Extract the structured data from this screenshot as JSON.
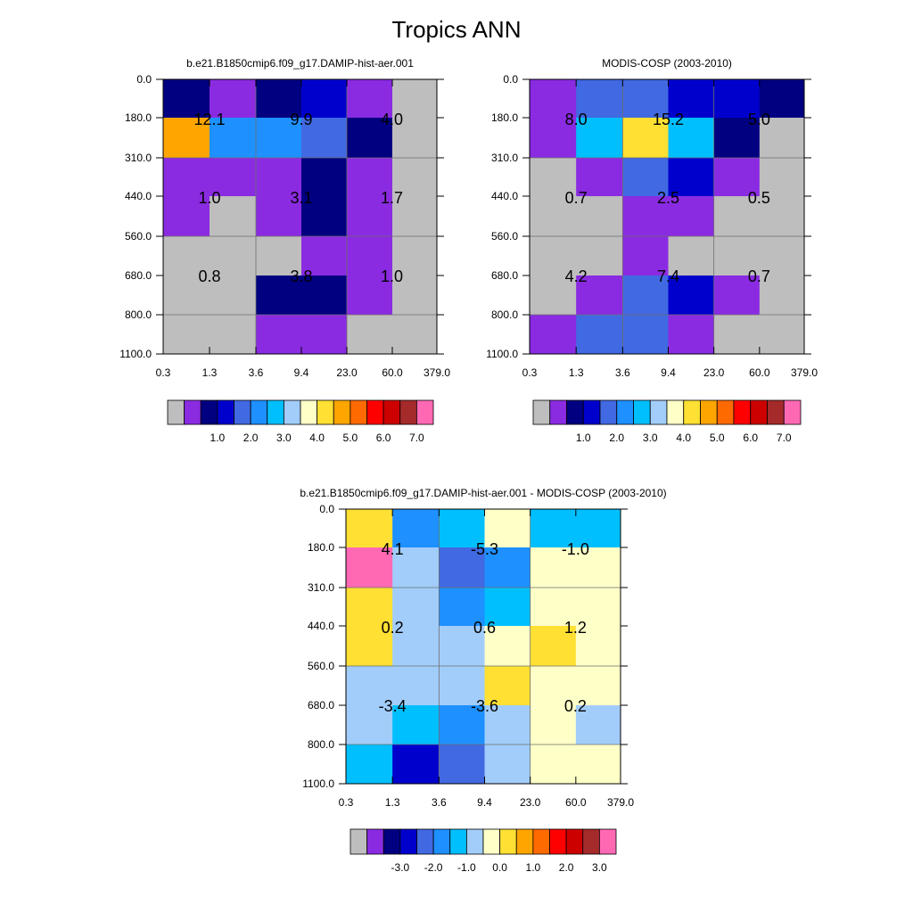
{
  "title": "Tropics ANN",
  "chart_data": [
    {
      "type": "heatmap",
      "title": "b.e21.B1850cmip6.f09_g17.DAMIP-hist-aer.001",
      "x_ticks": [
        "0.3",
        "1.3",
        "3.6",
        "9.4",
        "23.0",
        "60.0",
        "379.0"
      ],
      "y_ticks": [
        "0.0",
        "180.0",
        "310.0",
        "440.0",
        "560.0",
        "680.0",
        "800.0",
        "1100.0"
      ],
      "cell_colors": [
        [
          "#000080",
          "#8A2BE2",
          "#000080",
          "#0000CD",
          "#8A2BE2",
          "#BEBEBE"
        ],
        [
          "#FFA500",
          "#1E90FF",
          "#1E90FF",
          "#4169E1",
          "#000080",
          "#BEBEBE"
        ],
        [
          "#8A2BE2",
          "#8A2BE2",
          "#8A2BE2",
          "#000080",
          "#8A2BE2",
          "#BEBEBE"
        ],
        [
          "#8A2BE2",
          "#BEBEBE",
          "#8A2BE2",
          "#000080",
          "#8A2BE2",
          "#BEBEBE"
        ],
        [
          "#BEBEBE",
          "#BEBEBE",
          "#BEBEBE",
          "#8A2BE2",
          "#8A2BE2",
          "#BEBEBE"
        ],
        [
          "#BEBEBE",
          "#BEBEBE",
          "#000080",
          "#000080",
          "#8A2BE2",
          "#BEBEBE"
        ],
        [
          "#BEBEBE",
          "#BEBEBE",
          "#8A2BE2",
          "#8A2BE2",
          "#BEBEBE",
          "#BEBEBE"
        ]
      ],
      "box_labels": [
        {
          "col": 0,
          "row": 0,
          "value": "12.1"
        },
        {
          "col": 1,
          "row": 0,
          "value": "9.9"
        },
        {
          "col": 2,
          "row": 0,
          "value": "4.0"
        },
        {
          "col": 0,
          "row": 1,
          "value": "1.0"
        },
        {
          "col": 1,
          "row": 1,
          "value": "3.1"
        },
        {
          "col": 2,
          "row": 1,
          "value": "1.7"
        },
        {
          "col": 0,
          "row": 2,
          "value": "0.8"
        },
        {
          "col": 1,
          "row": 2,
          "value": "3.8"
        },
        {
          "col": 2,
          "row": 2,
          "value": "1.0"
        }
      ],
      "colorbar": {
        "colors": [
          "#BEBEBE",
          "#8A2BE2",
          "#000080",
          "#0000CD",
          "#4169E1",
          "#1E90FF",
          "#00BFFF",
          "#A2CDFA",
          "#FFFFC8",
          "#FFE033",
          "#FFA500",
          "#FF6A00",
          "#FF0000",
          "#CD0000",
          "#A52A2A",
          "#FF69B4"
        ],
        "labels": [
          "1.0",
          "2.0",
          "3.0",
          "4.0",
          "5.0",
          "6.0",
          "7.0"
        ]
      }
    },
    {
      "type": "heatmap",
      "title": "MODIS-COSP (2003-2010)",
      "x_ticks": [
        "0.3",
        "1.3",
        "3.6",
        "9.4",
        "23.0",
        "60.0",
        "379.0"
      ],
      "y_ticks": [
        "0.0",
        "180.0",
        "310.0",
        "440.0",
        "560.0",
        "680.0",
        "800.0",
        "1100.0"
      ],
      "cell_colors": [
        [
          "#8A2BE2",
          "#4169E1",
          "#4169E1",
          "#0000CD",
          "#0000CD",
          "#000080"
        ],
        [
          "#8A2BE2",
          "#00BFFF",
          "#FFE033",
          "#00BFFF",
          "#000080",
          "#BEBEBE"
        ],
        [
          "#BEBEBE",
          "#8A2BE2",
          "#4169E1",
          "#0000CD",
          "#8A2BE2",
          "#BEBEBE"
        ],
        [
          "#BEBEBE",
          "#BEBEBE",
          "#8A2BE2",
          "#8A2BE2",
          "#BEBEBE",
          "#BEBEBE"
        ],
        [
          "#BEBEBE",
          "#BEBEBE",
          "#8A2BE2",
          "#BEBEBE",
          "#BEBEBE",
          "#BEBEBE"
        ],
        [
          "#BEBEBE",
          "#8A2BE2",
          "#4169E1",
          "#0000CD",
          "#8A2BE2",
          "#BEBEBE"
        ],
        [
          "#8A2BE2",
          "#4169E1",
          "#4169E1",
          "#8A2BE2",
          "#BEBEBE",
          "#BEBEBE"
        ]
      ],
      "box_labels": [
        {
          "col": 0,
          "row": 0,
          "value": "8.0"
        },
        {
          "col": 1,
          "row": 0,
          "value": "15.2"
        },
        {
          "col": 2,
          "row": 0,
          "value": "5.0"
        },
        {
          "col": 0,
          "row": 1,
          "value": "0.7"
        },
        {
          "col": 1,
          "row": 1,
          "value": "2.5"
        },
        {
          "col": 2,
          "row": 1,
          "value": "0.5"
        },
        {
          "col": 0,
          "row": 2,
          "value": "4.2"
        },
        {
          "col": 1,
          "row": 2,
          "value": "7.4"
        },
        {
          "col": 2,
          "row": 2,
          "value": "0.7"
        }
      ],
      "colorbar": {
        "colors": [
          "#BEBEBE",
          "#8A2BE2",
          "#000080",
          "#0000CD",
          "#4169E1",
          "#1E90FF",
          "#00BFFF",
          "#A2CDFA",
          "#FFFFC8",
          "#FFE033",
          "#FFA500",
          "#FF6A00",
          "#FF0000",
          "#CD0000",
          "#A52A2A",
          "#FF69B4"
        ],
        "labels": [
          "1.0",
          "2.0",
          "3.0",
          "4.0",
          "5.0",
          "6.0",
          "7.0"
        ]
      }
    },
    {
      "type": "heatmap",
      "title": "b.e21.B1850cmip6.f09_g17.DAMIP-hist-aer.001 - MODIS-COSP (2003-2010)",
      "x_ticks": [
        "0.3",
        "1.3",
        "3.6",
        "9.4",
        "23.0",
        "60.0",
        "379.0"
      ],
      "y_ticks": [
        "0.0",
        "180.0",
        "310.0",
        "440.0",
        "560.0",
        "680.0",
        "800.0",
        "1100.0"
      ],
      "cell_colors": [
        [
          "#FFE033",
          "#1E90FF",
          "#00BFFF",
          "#FFFFC8",
          "#00BFFF",
          "#00BFFF"
        ],
        [
          "#FF69B4",
          "#A2CDFA",
          "#4169E1",
          "#1E90FF",
          "#FFFFC8",
          "#FFFFC8"
        ],
        [
          "#FFE033",
          "#A2CDFA",
          "#1E90FF",
          "#00BFFF",
          "#FFFFC8",
          "#FFFFC8"
        ],
        [
          "#FFE033",
          "#A2CDFA",
          "#A2CDFA",
          "#FFFFC8",
          "#FFE033",
          "#FFFFC8"
        ],
        [
          "#A2CDFA",
          "#A2CDFA",
          "#A2CDFA",
          "#FFE033",
          "#FFFFC8",
          "#FFFFC8"
        ],
        [
          "#A2CDFA",
          "#00BFFF",
          "#1E90FF",
          "#A2CDFA",
          "#FFFFC8",
          "#A2CDFA"
        ],
        [
          "#00BFFF",
          "#0000CD",
          "#4169E1",
          "#A2CDFA",
          "#FFFFC8",
          "#FFFFC8"
        ]
      ],
      "box_labels": [
        {
          "col": 0,
          "row": 0,
          "value": "4.1"
        },
        {
          "col": 1,
          "row": 0,
          "value": "-5.3"
        },
        {
          "col": 2,
          "row": 0,
          "value": "-1.0"
        },
        {
          "col": 0,
          "row": 1,
          "value": "0.2"
        },
        {
          "col": 1,
          "row": 1,
          "value": "0.6"
        },
        {
          "col": 2,
          "row": 1,
          "value": "1.2"
        },
        {
          "col": 0,
          "row": 2,
          "value": "-3.4"
        },
        {
          "col": 1,
          "row": 2,
          "value": "-3.6"
        },
        {
          "col": 2,
          "row": 2,
          "value": "0.2"
        }
      ],
      "colorbar": {
        "colors": [
          "#BEBEBE",
          "#8A2BE2",
          "#000080",
          "#0000CD",
          "#4169E1",
          "#1E90FF",
          "#00BFFF",
          "#A2CDFA",
          "#FFFFC8",
          "#FFE033",
          "#FFA500",
          "#FF6A00",
          "#FF0000",
          "#CD0000",
          "#A52A2A",
          "#FF69B4"
        ],
        "labels": [
          "-3.0",
          "-2.0",
          "-1.0",
          "0.0",
          "1.0",
          "2.0",
          "3.0"
        ]
      }
    }
  ]
}
